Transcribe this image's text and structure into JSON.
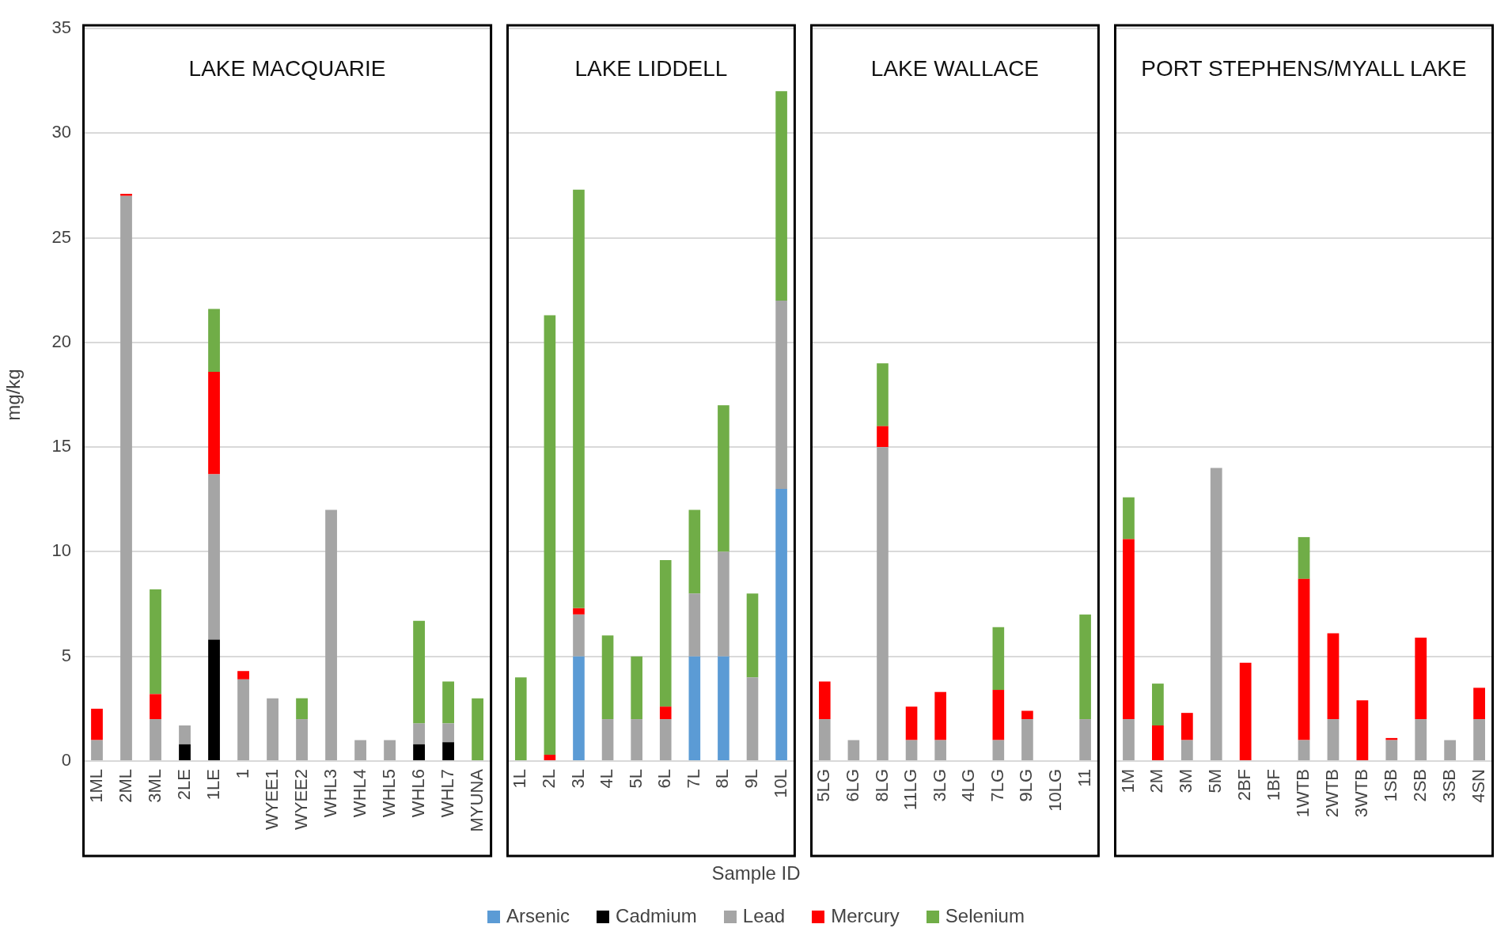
{
  "chart_data": [
    {
      "type": "bar",
      "stacked": true,
      "title": "LAKE MACQUARIE",
      "ylabel": "mg/kg",
      "legend": "bottom",
      "categories": [
        "1ML",
        "2ML",
        "3ML",
        "2LE",
        "1LE",
        "1",
        "WYEE1",
        "WYEE2",
        "WHL3",
        "WHL4",
        "WHL5",
        "WHL6",
        "WHL7",
        "MYUNA"
      ],
      "series": [
        {
          "name": "Arsenic",
          "color": "#5b9bd5",
          "values": [
            null,
            null,
            null,
            null,
            null,
            null,
            null,
            null,
            null,
            null,
            null,
            null,
            null,
            null
          ]
        },
        {
          "name": "Cadmium",
          "color": "#000000",
          "values": [
            null,
            null,
            null,
            0.8,
            5.8,
            null,
            null,
            null,
            null,
            null,
            null,
            0.8,
            0.9,
            null
          ]
        },
        {
          "name": "Lead",
          "color": "#a5a5a5",
          "values": [
            1,
            27,
            2,
            0.9,
            7.9,
            3.9,
            3,
            2,
            12,
            1,
            1,
            1,
            0.9,
            null
          ]
        },
        {
          "name": "Mercury",
          "color": "#ff0000",
          "values": [
            1.5,
            0.1,
            1.2,
            null,
            4.9,
            0.4,
            null,
            null,
            null,
            null,
            null,
            null,
            null,
            null
          ]
        },
        {
          "name": "Selenium",
          "color": "#70ad47",
          "values": [
            null,
            null,
            5,
            null,
            3,
            null,
            null,
            1,
            null,
            null,
            null,
            4.9,
            2,
            3
          ]
        }
      ],
      "ylim": [
        0,
        35
      ],
      "yticks": [
        0,
        5,
        10,
        15,
        20,
        25,
        30,
        35
      ],
      "grid": "y"
    },
    {
      "type": "bar",
      "stacked": true,
      "title": "LAKE LIDDELL",
      "xlabel": "Sample ID",
      "categories": [
        "1L",
        "2L",
        "3L",
        "4L",
        "5L",
        "6L",
        "7L",
        "8L",
        "9L",
        "10L"
      ],
      "series": [
        {
          "color": "#5b9bd5",
          "values": [
            null,
            null,
            5,
            null,
            null,
            null,
            5,
            5,
            null,
            13
          ]
        },
        {
          "color": "#000000",
          "values": [
            null,
            null,
            null,
            null,
            null,
            null,
            null,
            null,
            null,
            null
          ]
        },
        {
          "color": "#a5a5a5",
          "values": [
            null,
            null,
            2,
            2,
            2,
            2,
            3,
            5,
            4,
            9
          ]
        },
        {
          "color": "#ff0000",
          "values": [
            null,
            0.3,
            0.3,
            null,
            null,
            0.6,
            null,
            null,
            null,
            null
          ]
        },
        {
          "color": "#70ad47",
          "values": [
            4,
            21,
            20,
            4,
            3,
            7,
            4,
            7,
            4,
            10
          ]
        }
      ],
      "ylim": [
        0,
        35
      ],
      "yticks": [
        0,
        5,
        10,
        15,
        20,
        25,
        30,
        35
      ],
      "grid": "y",
      "tick_labels": "x"
    },
    {
      "type": "bar",
      "stacked": true,
      "title": "LAKE WALLACE",
      "categories": [
        "5LG",
        "6LG",
        "8LG",
        "11LG",
        "3LG",
        "4LG",
        "7LG",
        "9LG",
        "10LG",
        "11"
      ],
      "series": [
        {
          "color": "#5b9bd5",
          "values": [
            null,
            null,
            null,
            null,
            null,
            null,
            null,
            null,
            null,
            null
          ]
        },
        {
          "color": "#000000",
          "values": [
            null,
            null,
            null,
            null,
            null,
            null,
            null,
            null,
            null,
            null
          ]
        },
        {
          "color": "#a5a5a5",
          "values": [
            2,
            1,
            15,
            1,
            1,
            null,
            1,
            2,
            null,
            2
          ]
        },
        {
          "color": "#ff0000",
          "values": [
            1.8,
            null,
            1,
            1.6,
            2.3,
            null,
            2.4,
            0.4,
            null,
            null
          ]
        },
        {
          "color": "#70ad47",
          "values": [
            null,
            null,
            3,
            null,
            null,
            null,
            3,
            null,
            null,
            5
          ]
        }
      ],
      "ylim": [
        0,
        35
      ],
      "yticks": [
        0,
        5,
        10,
        15,
        20,
        25,
        30,
        35
      ],
      "grid": "y",
      "tick_labels": "x"
    },
    {
      "type": "bar",
      "stacked": true,
      "title": "PORT STEPHENS/MYALL LAKE",
      "categories": [
        "1M",
        "2M",
        "3M",
        "5M",
        "2BF",
        "1BF",
        "1WTB",
        "2WTB",
        "3WTB",
        "1SB",
        "2SB",
        "3SB",
        "4SN"
      ],
      "series": [
        {
          "color": "#5b9bd5",
          "values": [
            null,
            null,
            null,
            null,
            null,
            null,
            null,
            null,
            null,
            null,
            null,
            null,
            null
          ]
        },
        {
          "color": "#000000",
          "values": [
            null,
            null,
            null,
            null,
            null,
            null,
            null,
            null,
            null,
            null,
            null,
            null,
            null
          ]
        },
        {
          "color": "#a5a5a5",
          "values": [
            2,
            null,
            1,
            14,
            null,
            null,
            1,
            2,
            null,
            1,
            2,
            1,
            2
          ]
        },
        {
          "color": "#ff0000",
          "values": [
            8.6,
            1.7,
            1.3,
            null,
            4.7,
            null,
            7.7,
            4.1,
            2.9,
            0.1,
            3.9,
            null,
            1.5
          ]
        },
        {
          "color": "#70ad47",
          "values": [
            2,
            2,
            null,
            null,
            null,
            null,
            2,
            null,
            null,
            null,
            null,
            null,
            null
          ]
        }
      ],
      "ylim": [
        0,
        35
      ],
      "yticks": [
        0,
        5,
        10,
        15,
        20,
        25,
        30,
        35
      ],
      "grid": "y",
      "tick_labels": "x"
    }
  ]
}
